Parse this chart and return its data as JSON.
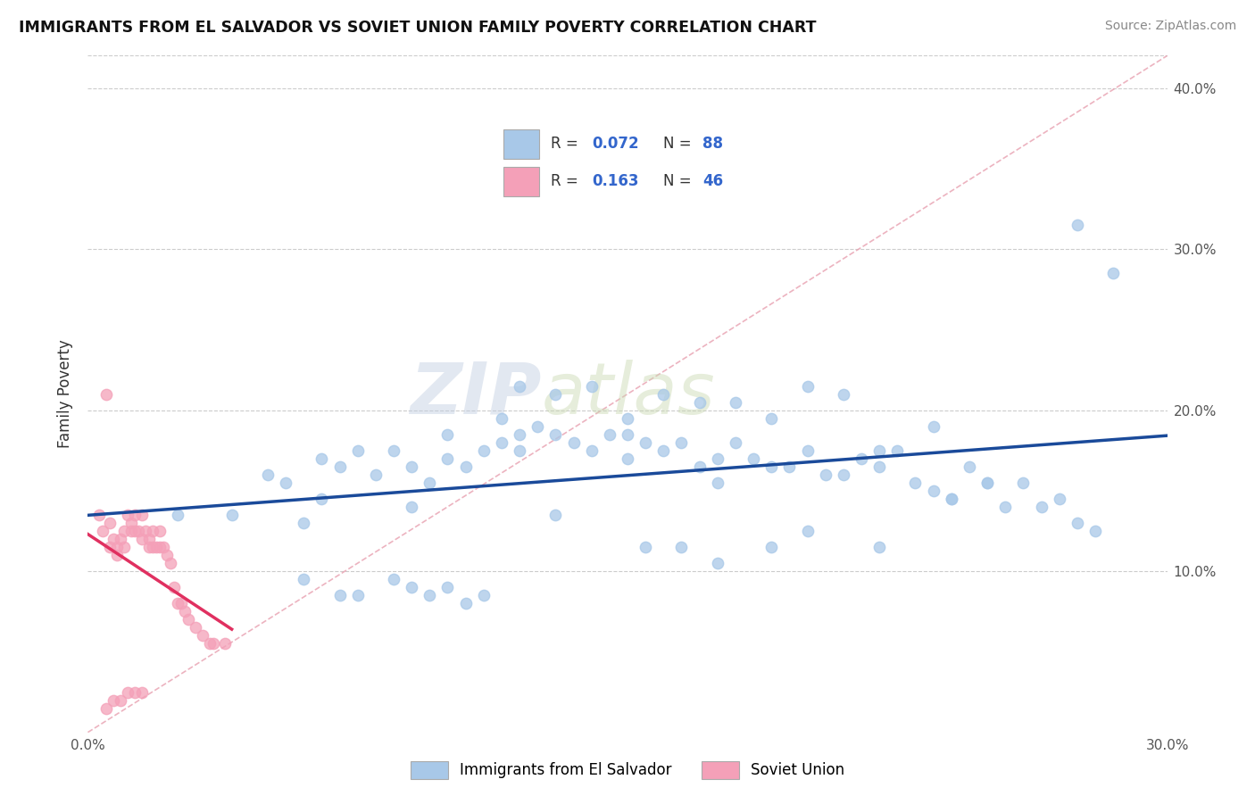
{
  "title": "IMMIGRANTS FROM EL SALVADOR VS SOVIET UNION FAMILY POVERTY CORRELATION CHART",
  "source": "Source: ZipAtlas.com",
  "ylabel": "Family Poverty",
  "xlim": [
    0.0,
    0.3
  ],
  "ylim": [
    0.0,
    0.42
  ],
  "x_ticks": [
    0.0,
    0.05,
    0.1,
    0.15,
    0.2,
    0.25,
    0.3
  ],
  "x_tick_labels": [
    "0.0%",
    "",
    "",
    "",
    "",
    "",
    "30.0%"
  ],
  "y_ticks": [
    0.0,
    0.1,
    0.2,
    0.3,
    0.4
  ],
  "y_tick_labels": [
    "",
    "10.0%",
    "20.0%",
    "30.0%",
    "40.0%"
  ],
  "el_salvador_color": "#a8c8e8",
  "soviet_color": "#f4a0b8",
  "el_salvador_line_color": "#1a4a9a",
  "soviet_line_color": "#e03060",
  "diagonal_color": "#e8a0b0",
  "stat_color": "#3366cc",
  "legend_label_1": "Immigrants from El Salvador",
  "legend_label_2": "Soviet Union",
  "watermark": "ZIPatlas",
  "es_x": [
    0.025,
    0.04,
    0.05,
    0.055,
    0.06,
    0.065,
    0.065,
    0.07,
    0.075,
    0.08,
    0.085,
    0.09,
    0.09,
    0.095,
    0.1,
    0.1,
    0.105,
    0.11,
    0.115,
    0.115,
    0.12,
    0.12,
    0.125,
    0.13,
    0.135,
    0.14,
    0.145,
    0.15,
    0.15,
    0.155,
    0.16,
    0.165,
    0.17,
    0.175,
    0.175,
    0.18,
    0.185,
    0.19,
    0.195,
    0.2,
    0.205,
    0.21,
    0.215,
    0.22,
    0.225,
    0.23,
    0.235,
    0.24,
    0.245,
    0.25,
    0.255,
    0.26,
    0.265,
    0.27,
    0.275,
    0.28,
    0.06,
    0.07,
    0.075,
    0.085,
    0.09,
    0.095,
    0.1,
    0.105,
    0.11,
    0.12,
    0.13,
    0.14,
    0.15,
    0.16,
    0.17,
    0.18,
    0.19,
    0.2,
    0.21,
    0.22,
    0.235,
    0.13,
    0.19,
    0.2,
    0.155,
    0.165,
    0.175,
    0.275,
    0.285,
    0.25,
    0.24,
    0.22
  ],
  "es_y": [
    0.135,
    0.135,
    0.16,
    0.155,
    0.13,
    0.17,
    0.145,
    0.165,
    0.175,
    0.16,
    0.175,
    0.165,
    0.14,
    0.155,
    0.185,
    0.17,
    0.165,
    0.175,
    0.195,
    0.18,
    0.185,
    0.175,
    0.19,
    0.185,
    0.18,
    0.175,
    0.185,
    0.185,
    0.17,
    0.18,
    0.175,
    0.18,
    0.165,
    0.17,
    0.155,
    0.18,
    0.17,
    0.165,
    0.165,
    0.175,
    0.16,
    0.16,
    0.17,
    0.165,
    0.175,
    0.155,
    0.15,
    0.145,
    0.165,
    0.155,
    0.14,
    0.155,
    0.14,
    0.145,
    0.13,
    0.125,
    0.095,
    0.085,
    0.085,
    0.095,
    0.09,
    0.085,
    0.09,
    0.08,
    0.085,
    0.215,
    0.21,
    0.215,
    0.195,
    0.21,
    0.205,
    0.205,
    0.195,
    0.215,
    0.21,
    0.175,
    0.19,
    0.135,
    0.115,
    0.125,
    0.115,
    0.115,
    0.105,
    0.315,
    0.285,
    0.155,
    0.145,
    0.115
  ],
  "su_x": [
    0.003,
    0.004,
    0.005,
    0.006,
    0.006,
    0.007,
    0.008,
    0.008,
    0.009,
    0.01,
    0.01,
    0.011,
    0.012,
    0.012,
    0.013,
    0.013,
    0.014,
    0.015,
    0.015,
    0.016,
    0.017,
    0.017,
    0.018,
    0.018,
    0.019,
    0.02,
    0.02,
    0.021,
    0.022,
    0.023,
    0.024,
    0.025,
    0.026,
    0.027,
    0.028,
    0.03,
    0.032,
    0.034,
    0.035,
    0.038,
    0.005,
    0.007,
    0.009,
    0.011,
    0.013,
    0.015
  ],
  "su_y": [
    0.135,
    0.125,
    0.21,
    0.13,
    0.115,
    0.12,
    0.115,
    0.11,
    0.12,
    0.125,
    0.115,
    0.135,
    0.13,
    0.125,
    0.125,
    0.135,
    0.125,
    0.12,
    0.135,
    0.125,
    0.12,
    0.115,
    0.115,
    0.125,
    0.115,
    0.115,
    0.125,
    0.115,
    0.11,
    0.105,
    0.09,
    0.08,
    0.08,
    0.075,
    0.07,
    0.065,
    0.06,
    0.055,
    0.055,
    0.055,
    0.015,
    0.02,
    0.02,
    0.025,
    0.025,
    0.025
  ]
}
